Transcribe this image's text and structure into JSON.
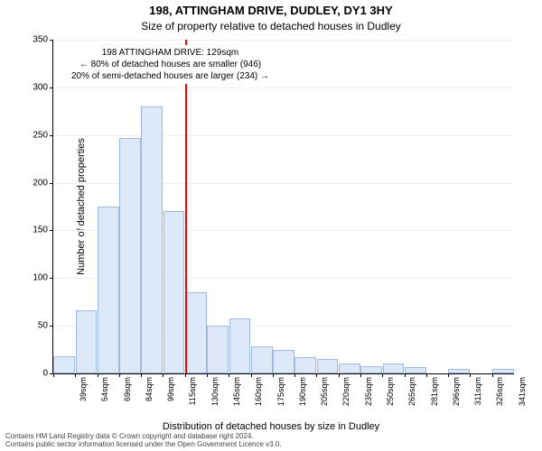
{
  "title": "198, ATTINGHAM DRIVE, DUDLEY, DY1 3HY",
  "subtitle": "Size of property relative to detached houses in Dudley",
  "ylabel": "Number of detached properties",
  "xcaption": "Distribution of detached houses by size in Dudley",
  "chart": {
    "type": "histogram",
    "ylim": [
      0,
      350
    ],
    "ytick_step": 50,
    "bar_fill": "#dde8f8",
    "bar_stroke": "#9fb8e0",
    "grid_color": "#eeeeee",
    "categories": [
      "39sqm",
      "54sqm",
      "69sqm",
      "84sqm",
      "99sqm",
      "115sqm",
      "130sqm",
      "145sqm",
      "160sqm",
      "175sqm",
      "190sqm",
      "205sqm",
      "220sqm",
      "235sqm",
      "250sqm",
      "265sqm",
      "281sqm",
      "296sqm",
      "311sqm",
      "326sqm",
      "341sqm"
    ],
    "values": [
      18,
      66,
      175,
      247,
      280,
      170,
      85,
      50,
      58,
      28,
      25,
      17,
      15,
      10,
      8,
      10,
      7,
      0,
      5,
      0,
      5
    ],
    "marker": {
      "at_category_index": 6,
      "color": "#ff0000",
      "lines": [
        "198 ATTINGHAM DRIVE: 129sqm",
        "← 80% of detached houses are smaller (946)",
        "20% of semi-detached houses are larger (234) →"
      ]
    }
  },
  "footer": {
    "l1": "Contains HM Land Registry data © Crown copyright and database right 2024.",
    "l2": "Contains public sector information licensed under the Open Government Licence v3.0."
  }
}
